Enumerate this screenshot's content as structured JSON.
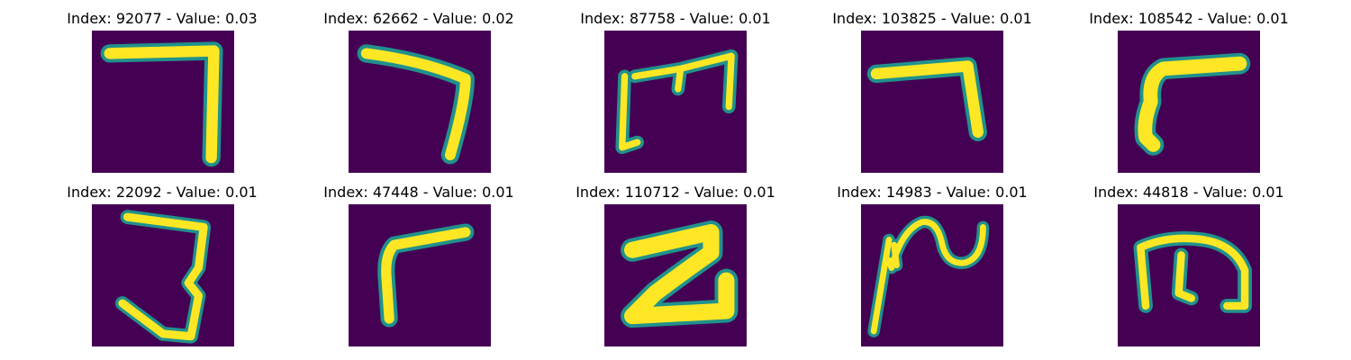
{
  "panels": [
    {
      "title": "Index: 92077 - Value: 0.03",
      "index": 92077,
      "value": 0.03,
      "glyph": "seven-hook"
    },
    {
      "title": "Index: 62662 - Value: 0.02",
      "index": 62662,
      "value": 0.02,
      "glyph": "seven-slant"
    },
    {
      "title": "Index: 87758 - Value: 0.01",
      "index": 87758,
      "value": 0.01,
      "glyph": "m-shape"
    },
    {
      "title": "Index: 103825 - Value: 0.01",
      "index": 103825,
      "value": 0.01,
      "glyph": "seven-short"
    },
    {
      "title": "Index: 108542 - Value: 0.01",
      "index": 108542,
      "value": 0.01,
      "glyph": "gamma-thick"
    },
    {
      "title": "Index: 22092 - Value: 0.01",
      "index": 22092,
      "value": 0.01,
      "glyph": "three"
    },
    {
      "title": "Index: 47448 - Value: 0.01",
      "index": 47448,
      "value": 0.01,
      "glyph": "gamma-thin"
    },
    {
      "title": "Index: 110712 - Value: 0.01",
      "index": 110712,
      "value": 0.01,
      "glyph": "z-thick"
    },
    {
      "title": "Index: 14983 - Value: 0.01",
      "index": 14983,
      "value": 0.01,
      "glyph": "line-squiggle"
    },
    {
      "title": "Index: 44818 - Value: 0.01",
      "index": 44818,
      "value": 0.01,
      "glyph": "m-rounded"
    }
  ],
  "colors": {
    "background": "#440154",
    "edge": "#21918c",
    "glow": "#5ec962",
    "core": "#fde725"
  }
}
